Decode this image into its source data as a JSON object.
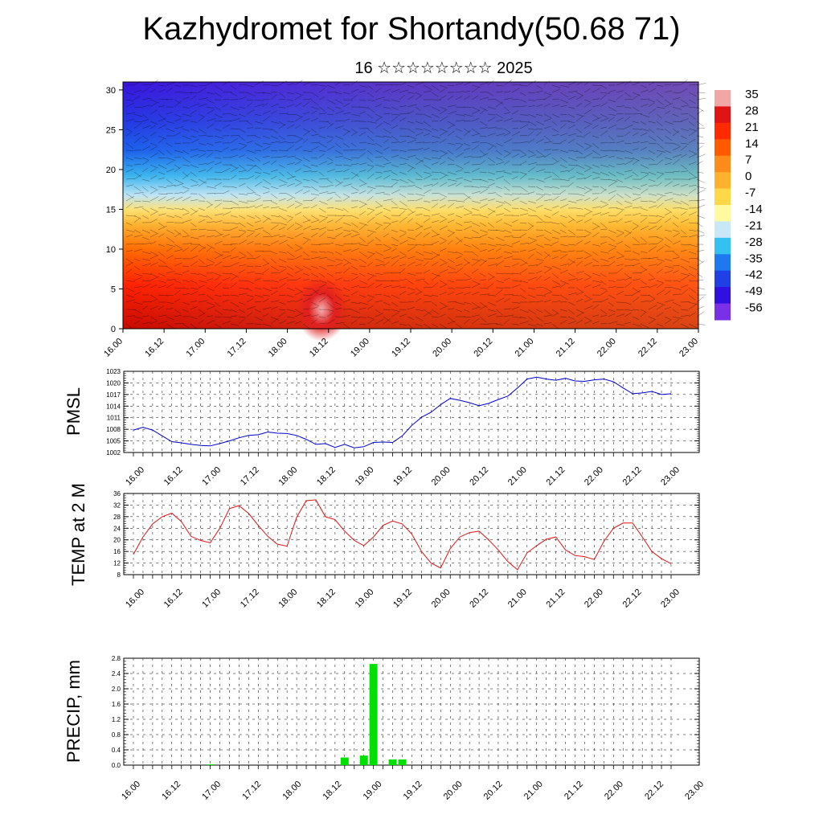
{
  "header": {
    "title": "Kazhydromet for Shortandy(50.68 71)",
    "subtitle": "16 ☆☆☆☆☆☆☆☆ 2025"
  },
  "time_labels": [
    "16.00",
    "16.12",
    "17.00",
    "17.12",
    "18.00",
    "18.12",
    "19.00",
    "19.12",
    "20.00",
    "20.12",
    "21.00",
    "21.12",
    "22.00",
    "22.12",
    "23.00"
  ],
  "chart_data": [
    {
      "type": "heatmap",
      "title": "",
      "ylim": [
        0,
        31
      ],
      "yticks": [
        0,
        5,
        10,
        15,
        20,
        25,
        30
      ],
      "x": [
        "16.00",
        "16.12",
        "17.00",
        "17.12",
        "18.00",
        "18.12",
        "19.00",
        "19.12",
        "20.00",
        "20.12",
        "21.00",
        "21.12",
        "22.00",
        "22.12",
        "23.00"
      ],
      "colorbar_labels": [
        "35",
        "28",
        "21",
        "14",
        "7",
        "0",
        "-7",
        "-14",
        "-21",
        "-28",
        "-35",
        "-42",
        "-49",
        "-56"
      ],
      "colorbar_colors": [
        "#f2a6a6",
        "#e01414",
        "#ff2a00",
        "#ff5a00",
        "#ff8c1a",
        "#ffb02e",
        "#ffd84a",
        "#fff9a0",
        "#c9e8f7",
        "#33c2f0",
        "#1e78f0",
        "#2040e6",
        "#3010e0",
        "#7a30e6"
      ],
      "cross_section_colors": {
        "top": "#3818e0",
        "upper": "#1a40e8",
        "mid": "#8cd0f4",
        "lower": "#ffd23c",
        "surface": "#ff2a00"
      }
    },
    {
      "type": "line",
      "ylabel": "PMSL",
      "ylim": [
        1002,
        1023
      ],
      "yticks": [
        1002,
        1005,
        1008,
        1011,
        1014,
        1017,
        1020,
        1023
      ],
      "color": "#0000cc",
      "x_start": "16.00",
      "step_hours": 3,
      "values": [
        1007.8,
        1008.5,
        1007.8,
        1006.3,
        1004.8,
        1004.5,
        1004.1,
        1003.8,
        1003.7,
        1004.3,
        1005.0,
        1005.8,
        1006.4,
        1006.6,
        1007.3,
        1007.0,
        1006.9,
        1006.4,
        1005.4,
        1004.1,
        1004.3,
        1003.3,
        1004.1,
        1003.2,
        1003.5,
        1004.6,
        1004.7,
        1004.6,
        1006.3,
        1009.0,
        1011.1,
        1012.4,
        1014.4,
        1016.0,
        1015.5,
        1014.9,
        1014.1,
        1014.7,
        1015.7,
        1016.6,
        1018.7,
        1021.0,
        1021.5,
        1021.0,
        1020.7,
        1021.2,
        1020.5,
        1020.4,
        1020.8,
        1021.0,
        1020.3,
        1018.7,
        1017.2,
        1017.4,
        1017.8,
        1017.0,
        1017.2
      ]
    },
    {
      "type": "line",
      "ylabel": "TEMP at 2 M",
      "ylim": [
        8,
        36
      ],
      "yticks": [
        8,
        12,
        16,
        20,
        24,
        28,
        32,
        36
      ],
      "color": "#e01010",
      "x_start": "16.00",
      "step_hours": 3,
      "values": [
        15.0,
        21.0,
        25.5,
        28.0,
        29.2,
        26.3,
        21.2,
        19.8,
        19.0,
        24.0,
        30.8,
        31.8,
        29.1,
        25.0,
        21.2,
        18.5,
        17.8,
        27.8,
        33.5,
        33.8,
        28.0,
        27.0,
        23.0,
        19.8,
        18.0,
        21.0,
        25.0,
        26.5,
        25.5,
        22.0,
        16.0,
        12.0,
        10.3,
        17.0,
        21.0,
        22.5,
        23.0,
        20.0,
        16.5,
        12.5,
        9.7,
        15.5,
        18.0,
        20.2,
        21.0,
        16.5,
        14.6,
        14.2,
        13.2,
        19.5,
        24.0,
        25.8,
        25.8,
        21.0,
        16.0,
        13.5,
        11.8
      ]
    },
    {
      "type": "bar",
      "ylabel": "PRECIP, mm",
      "ylim": [
        0,
        2.8
      ],
      "yticks": [
        "0.0",
        "0.4",
        "0.8",
        "1.2",
        "1.6",
        "2.0",
        "2.4",
        "2.8"
      ],
      "color": "#00e000",
      "x_start": "16.00",
      "step_hours": 3,
      "values": [
        0,
        0,
        0,
        0,
        0,
        0,
        0,
        0,
        0.02,
        0,
        0,
        0,
        0,
        0,
        0,
        0,
        0,
        0,
        0,
        0,
        0,
        0,
        0.2,
        0,
        0.25,
        2.65,
        0,
        0.15,
        0.15,
        0,
        0,
        0,
        0,
        0,
        0,
        0,
        0,
        0,
        0,
        0,
        0,
        0,
        0,
        0,
        0,
        0,
        0,
        0,
        0,
        0,
        0,
        0,
        0,
        0,
        0,
        0,
        0
      ]
    }
  ]
}
